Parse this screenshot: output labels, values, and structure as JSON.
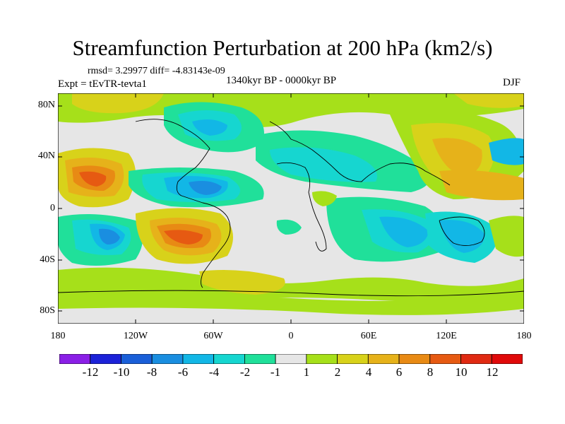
{
  "title": "Streamfunction Perturbation at 200 hPa (km2/s)",
  "stats": "rmsd= 3.29977 diff= -4.83143e-09",
  "experiment": "Expt = tEvTR-tevta1",
  "period": "1340kyr BP - 0000kyr BP",
  "season": "DJF",
  "lat_ticks": [
    "80N",
    "40N",
    "0",
    "40S",
    "80S"
  ],
  "lon_ticks": [
    "180",
    "120W",
    "60W",
    "0",
    "60E",
    "120E",
    "180"
  ],
  "colorbar": {
    "labels": [
      "-12",
      "-10",
      "-8",
      "-6",
      "-4",
      "-2",
      "-1",
      "1",
      "2",
      "4",
      "6",
      "8",
      "10",
      "12"
    ],
    "colors": [
      "#8a1fe6",
      "#1c22d8",
      "#1a5fd8",
      "#1a8ee0",
      "#12b7e6",
      "#16d6d0",
      "#20e09a",
      "#e6e6e6",
      "#a6e01a",
      "#d8d21a",
      "#e6b21a",
      "#e88a14",
      "#e65a12",
      "#e02a12",
      "#e00a0a"
    ]
  }
}
